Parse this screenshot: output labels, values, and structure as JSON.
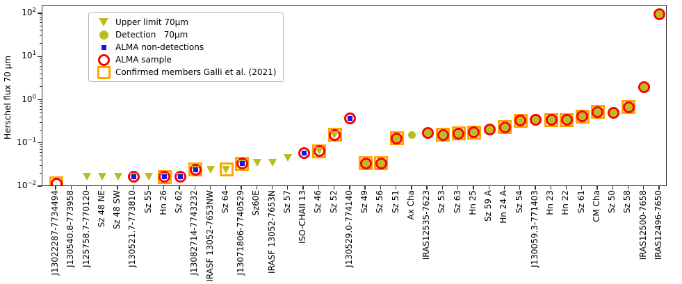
{
  "figure": {
    "ylabel": "Herschel flux 70 μm"
  },
  "colors": {
    "olive": "#b9bd22",
    "red": "#ff0000",
    "orange": "#ffa500",
    "blue": "#1414f0",
    "axis": "#2e2e2e",
    "text": "#000000"
  },
  "legend": {
    "items": [
      {
        "label": "Upper limit 70μm",
        "marker": "upper_limit"
      },
      {
        "label": "Detection   70μm",
        "marker": "detection"
      },
      {
        "label": "ALMA non-detections",
        "marker": "alma_nondetection"
      },
      {
        "label": "ALMA sample",
        "marker": "alma_sample"
      },
      {
        "label": "Confirmed members Galli et al. (2021)",
        "marker": "confirmed_member"
      }
    ]
  },
  "chart_data": {
    "type": "scatter",
    "yscale": "log",
    "title": "",
    "xlabel": "",
    "ylabel": "Herschel flux 70 μm",
    "ylim": [
      0.01,
      160
    ],
    "y_tick_exponents": [
      2,
      1,
      0,
      -1,
      -2
    ],
    "grid": false,
    "legend_position": "upper left",
    "marker_meanings": {
      "upper_limit": "Upper limit 70μm (olive down-triangle)",
      "detection": "Detection 70μm (olive filled circle)",
      "alma_nondetection": "ALMA non-detections (blue square)",
      "alma_sample": "ALMA sample (red open circle)",
      "confirmed_member": "Confirmed members Galli et al. (2021) (orange open square)"
    },
    "points": [
      {
        "label": "J13022287-7734494",
        "flux": 0.012,
        "markers": [
          "confirmed_member",
          "alma_sample"
        ]
      },
      {
        "label": "J130540.8-773958",
        "flux": null,
        "markers": []
      },
      {
        "label": "J125758.7-770120",
        "flux": 0.017,
        "markers": [
          "upper_limit"
        ]
      },
      {
        "label": "Sz 48 NE",
        "flux": 0.017,
        "markers": [
          "upper_limit"
        ]
      },
      {
        "label": "Sz 48 SW",
        "flux": 0.017,
        "markers": [
          "upper_limit"
        ]
      },
      {
        "label": "J130521.7-773810",
        "flux": 0.017,
        "markers": [
          "alma_sample",
          "upper_limit",
          "alma_nondetection"
        ]
      },
      {
        "label": "Sz 55",
        "flux": 0.017,
        "markers": [
          "upper_limit"
        ]
      },
      {
        "label": "Hn 26",
        "flux": 0.017,
        "markers": [
          "confirmed_member",
          "alma_sample",
          "upper_limit",
          "alma_nondetection"
        ]
      },
      {
        "label": "Sz 62",
        "flux": 0.017,
        "markers": [
          "alma_sample",
          "upper_limit",
          "alma_nondetection"
        ]
      },
      {
        "label": "J13082714-7743232",
        "flux": 0.025,
        "markers": [
          "confirmed_member",
          "alma_sample",
          "upper_limit",
          "alma_nondetection"
        ]
      },
      {
        "label": "IRASF 13052-7653NW",
        "flux": 0.025,
        "markers": [
          "upper_limit"
        ]
      },
      {
        "label": "Sz 64",
        "flux": 0.025,
        "markers": [
          "confirmed_member",
          "upper_limit"
        ]
      },
      {
        "label": "J13071806-7740529",
        "flux": 0.034,
        "markers": [
          "confirmed_member",
          "alma_sample",
          "upper_limit",
          "alma_nondetection"
        ]
      },
      {
        "label": "Sz60E",
        "flux": 0.036,
        "markers": [
          "upper_limit"
        ]
      },
      {
        "label": "IRASF 13052-7653N",
        "flux": 0.036,
        "markers": [
          "upper_limit"
        ]
      },
      {
        "label": "Sz 57",
        "flux": 0.047,
        "markers": [
          "upper_limit"
        ]
      },
      {
        "label": "ISO-CHAII 13",
        "flux": 0.061,
        "markers": [
          "alma_sample",
          "alma_nondetection"
        ]
      },
      {
        "label": "Sz 46",
        "flux": 0.066,
        "markers": [
          "confirmed_member",
          "alma_sample",
          "upper_limit"
        ]
      },
      {
        "label": "Sz 52",
        "flux": 0.16,
        "markers": [
          "confirmed_member",
          "alma_sample",
          "upper_limit"
        ]
      },
      {
        "label": "J130529.0-774140",
        "flux": 0.38,
        "markers": [
          "alma_sample",
          "alma_nondetection"
        ]
      },
      {
        "label": "Sz 49",
        "flux": 0.035,
        "markers": [
          "confirmed_member",
          "alma_sample",
          "detection"
        ]
      },
      {
        "label": "Sz 56",
        "flux": 0.035,
        "markers": [
          "confirmed_member",
          "alma_sample",
          "detection"
        ]
      },
      {
        "label": "Sz 51",
        "flux": 0.133,
        "markers": [
          "confirmed_member",
          "alma_sample",
          "detection"
        ]
      },
      {
        "label": "Ax Cha",
        "flux": 0.155,
        "markers": [
          "detection"
        ]
      },
      {
        "label": "IRAS12535-7623",
        "flux": 0.173,
        "markers": [
          "alma_sample",
          "detection"
        ]
      },
      {
        "label": "Sz 53",
        "flux": 0.16,
        "markers": [
          "confirmed_member",
          "alma_sample",
          "detection"
        ]
      },
      {
        "label": "Sz 63",
        "flux": 0.17,
        "markers": [
          "confirmed_member",
          "alma_sample",
          "detection"
        ]
      },
      {
        "label": "Hn 25",
        "flux": 0.18,
        "markers": [
          "confirmed_member",
          "alma_sample",
          "detection"
        ]
      },
      {
        "label": "Sz 59 A",
        "flux": 0.215,
        "markers": [
          "alma_sample",
          "detection"
        ]
      },
      {
        "label": "Hn 24 A",
        "flux": 0.24,
        "markers": [
          "confirmed_member",
          "alma_sample",
          "detection"
        ]
      },
      {
        "label": "Sz 54",
        "flux": 0.34,
        "markers": [
          "confirmed_member",
          "alma_sample",
          "detection"
        ]
      },
      {
        "label": "J130059.3-771403",
        "flux": 0.35,
        "markers": [
          "alma_sample",
          "detection"
        ]
      },
      {
        "label": "Hn 23",
        "flux": 0.35,
        "markers": [
          "confirmed_member",
          "alma_sample",
          "detection"
        ]
      },
      {
        "label": "Hn 22",
        "flux": 0.35,
        "markers": [
          "confirmed_member",
          "alma_sample",
          "detection"
        ]
      },
      {
        "label": "Sz 61",
        "flux": 0.42,
        "markers": [
          "confirmed_member",
          "alma_sample",
          "detection"
        ]
      },
      {
        "label": "CM Cha",
        "flux": 0.54,
        "markers": [
          "confirmed_member",
          "alma_sample",
          "detection"
        ]
      },
      {
        "label": "Sz 50",
        "flux": 0.52,
        "markers": [
          "alma_sample",
          "detection"
        ]
      },
      {
        "label": "Sz 58",
        "flux": 0.7,
        "markers": [
          "confirmed_member",
          "alma_sample",
          "detection"
        ]
      },
      {
        "label": "IRAS12500-7658",
        "flux": 2.0,
        "markers": [
          "alma_sample",
          "detection"
        ]
      },
      {
        "label": "IRAS12496-7650",
        "flux": 100,
        "markers": [
          "alma_sample",
          "detection"
        ]
      }
    ]
  }
}
